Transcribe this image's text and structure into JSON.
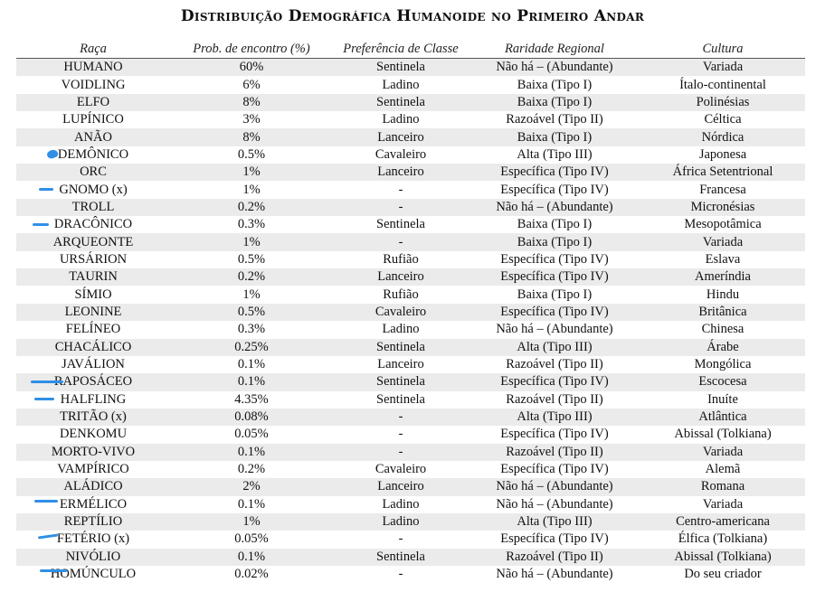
{
  "title": "Distribuição Demográfica Humanoide no Primeiro Andar",
  "headers": [
    "Raça",
    "Prob. de encontro (%)",
    "Preferência de Classe",
    "Raridade Regional",
    "Cultura"
  ],
  "rows": [
    [
      "HUMANO",
      "60%",
      "Sentinela",
      "Não há – (Abundante)",
      "Variada"
    ],
    [
      "VOIDLING",
      "6%",
      "Ladino",
      "Baixa (Tipo I)",
      "Ítalo-continental"
    ],
    [
      "ELFO",
      "8%",
      "Sentinela",
      "Baixa (Tipo I)",
      "Polinésias"
    ],
    [
      "LUPÍNICO",
      "3%",
      "Ladino",
      "Razoável (Tipo II)",
      "Céltica"
    ],
    [
      "ANÃO",
      "8%",
      "Lanceiro",
      "Baixa (Tipo I)",
      "Nórdica"
    ],
    [
      "DEMÔNICO",
      "0.5%",
      "Cavaleiro",
      "Alta (Tipo III)",
      "Japonesa"
    ],
    [
      "ORC",
      "1%",
      "Lanceiro",
      "Específica (Tipo IV)",
      "África Setentrional"
    ],
    [
      "GNOMO (x)",
      "1%",
      "-",
      "Específica (Tipo IV)",
      "Francesa"
    ],
    [
      "TROLL",
      "0.2%",
      "-",
      "Não há – (Abundante)",
      "Micronésias"
    ],
    [
      "DRACÔNICO",
      "0.3%",
      "Sentinela",
      "Baixa (Tipo I)",
      "Mesopotâmica"
    ],
    [
      "ARQUEONTE",
      "1%",
      "-",
      "Baixa (Tipo I)",
      "Variada"
    ],
    [
      "URSÁRION",
      "0.5%",
      "Rufião",
      "Específica (Tipo IV)",
      "Eslava"
    ],
    [
      "TAURIN",
      "0.2%",
      "Lanceiro",
      "Específica (Tipo IV)",
      "Ameríndia"
    ],
    [
      "SÍMIO",
      "1%",
      "Rufião",
      "Baixa (Tipo I)",
      "Hindu"
    ],
    [
      "LEONINE",
      "0.5%",
      "Cavaleiro",
      "Específica (Tipo IV)",
      "Britânica"
    ],
    [
      "FELÍNEO",
      "0.3%",
      "Ladino",
      "Não há – (Abundante)",
      "Chinesa"
    ],
    [
      "CHACÁLICO",
      "0.25%",
      "Sentinela",
      "Alta (Tipo III)",
      "Árabe"
    ],
    [
      "JAVÁLION",
      "0.1%",
      "Lanceiro",
      "Razoável (Tipo II)",
      "Mongólica"
    ],
    [
      "RAPOSÁCEO",
      "0.1%",
      "Sentinela",
      "Específica (Tipo IV)",
      "Escocesa"
    ],
    [
      "HALFLING",
      "4.35%",
      "Sentinela",
      "Razoável (Tipo II)",
      "Inuíte"
    ],
    [
      "TRITÃO (x)",
      "0.08%",
      "-",
      "Alta (Tipo III)",
      "Atlântica"
    ],
    [
      "DENKOMU",
      "0.05%",
      "-",
      "Específica (Tipo IV)",
      "Abissal (Tolkiana)"
    ],
    [
      "MORTO-VIVO",
      "0.1%",
      "-",
      "Razoável (Tipo II)",
      "Variada"
    ],
    [
      "VAMPÍRICO",
      "0.2%",
      "Cavaleiro",
      "Específica (Tipo IV)",
      "Alemã"
    ],
    [
      "ALÁDICO",
      "2%",
      "Lanceiro",
      "Não há – (Abundante)",
      "Romana"
    ],
    [
      "ERMÉLICO",
      "0.1%",
      "Ladino",
      "Não há – (Abundante)",
      "Variada"
    ],
    [
      "REPTÍLIO",
      "1%",
      "Ladino",
      "Alta (Tipo III)",
      "Centro-americana"
    ],
    [
      "FETÉRIO (x)",
      "0.05%",
      "-",
      "Específica (Tipo IV)",
      "Élfica (Tolkiana)"
    ],
    [
      "NIVÓLIO",
      "0.1%",
      "Sentinela",
      "Razoável (Tipo II)",
      "Abissal (Tolkiana)"
    ],
    [
      "HOMÚNCULO",
      "0.02%",
      "-",
      "Não há – (Abundante)",
      "Do seu criador"
    ]
  ],
  "annotation_color": "#2f8fe6"
}
